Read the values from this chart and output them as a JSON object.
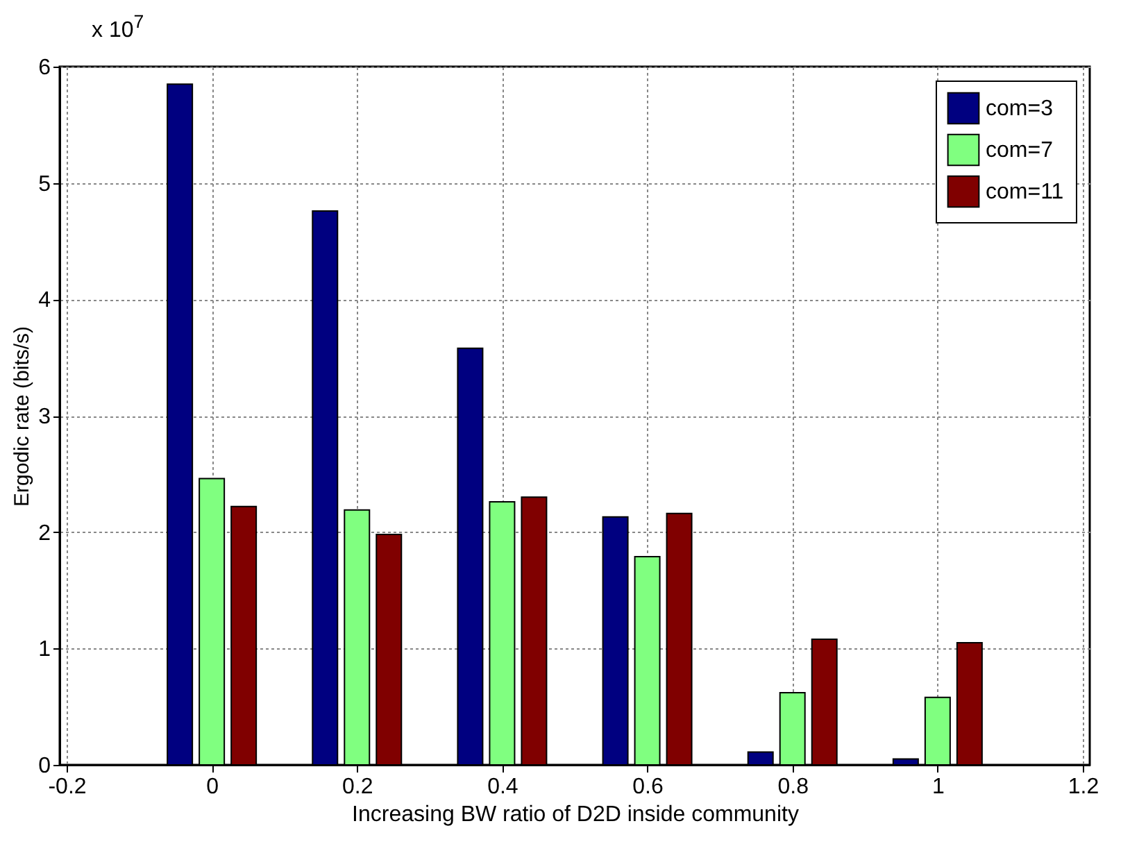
{
  "chart_data": {
    "type": "bar",
    "xlabel": "Increasing BW ratio of D2D inside community",
    "ylabel": "Ergodic rate (bits/s)",
    "annotations": [
      "x 10$^{7}$"
    ],
    "x": [
      0,
      0.2,
      0.4,
      0.6,
      0.8,
      1
    ],
    "series": [
      {
        "name": "com=3",
        "color": "#000080",
        "values": [
          5.85,
          4.76,
          3.58,
          2.13,
          0.11,
          0.05
        ]
      },
      {
        "name": "com=7",
        "color": "#80ff80",
        "values": [
          2.46,
          2.19,
          2.26,
          1.79,
          0.62,
          0.58
        ]
      },
      {
        "name": "com=11",
        "color": "#800000",
        "values": [
          2.22,
          1.98,
          2.3,
          2.16,
          1.08,
          1.05
        ]
      }
    ],
    "xlim": [
      -0.2,
      1.2
    ],
    "xticks": [
      -0.2,
      0,
      0.2,
      0.4,
      0.6,
      0.8,
      1,
      1.2
    ],
    "ylim": [
      0,
      6
    ],
    "yticks": [
      0,
      1,
      2,
      3,
      4,
      5,
      6
    ],
    "grid": true,
    "legend": "top right"
  }
}
